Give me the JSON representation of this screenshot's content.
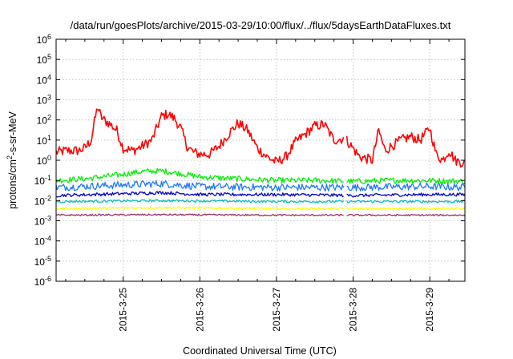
{
  "chart_data": {
    "type": "line",
    "title": "/data/run/goesPlots/archive/2015-03-29/10:00/flux/../flux/5daysEarthDataFluxes.txt",
    "xlabel": "Coordinated Universal Time (UTC)",
    "ylabel": {
      "prefix": "protons/cm",
      "sup": "2",
      "suffix": "-s-sr-MeV"
    },
    "yscale": "log",
    "ylim": [
      1e-06,
      1000000.0
    ],
    "xlim": [
      "2015-03-24 03:00",
      "2015-03-29 11:00"
    ],
    "grid": true,
    "y_ticks": [
      {
        "base": "10",
        "exp": "-6"
      },
      {
        "base": "10",
        "exp": "-5"
      },
      {
        "base": "10",
        "exp": "-4"
      },
      {
        "base": "10",
        "exp": "-3"
      },
      {
        "base": "10",
        "exp": "-2"
      },
      {
        "base": "10",
        "exp": "-1"
      },
      {
        "base": "10",
        "exp": "0"
      },
      {
        "base": "10",
        "exp": "1"
      },
      {
        "base": "10",
        "exp": "2"
      },
      {
        "base": "10",
        "exp": "3"
      },
      {
        "base": "10",
        "exp": "4"
      },
      {
        "base": "10",
        "exp": "5"
      },
      {
        "base": "10",
        "exp": "6"
      }
    ],
    "x_ticks": [
      "2015-3-25",
      "2015-3-26",
      "2015-3-27",
      "2015-3-28",
      "2015-3-29"
    ],
    "data_gap": [
      "2015-03-27 21:00",
      "2015-03-27 22:00"
    ],
    "series": [
      {
        "color": "#ff0000",
        "jitter": 0.25,
        "x": [
          "2015-03-24 03:00",
          "2015-03-24 06:00",
          "2015-03-24 10:00",
          "2015-03-24 12:00",
          "2015-03-24 14:00",
          "2015-03-24 15:00",
          "2015-03-24 16:00",
          "2015-03-24 17:00",
          "2015-03-24 18:00",
          "2015-03-24 20:00",
          "2015-03-24 22:00",
          "2015-03-25 00:00",
          "2015-03-25 03:00",
          "2015-03-25 06:00",
          "2015-03-25 09:00",
          "2015-03-25 12:00",
          "2015-03-25 14:00",
          "2015-03-25 16:00",
          "2015-03-25 18:00",
          "2015-03-25 20:00",
          "2015-03-25 22:00",
          "2015-03-26 00:00",
          "2015-03-26 03:00",
          "2015-03-26 06:00",
          "2015-03-26 09:00",
          "2015-03-26 12:00",
          "2015-03-26 15:00",
          "2015-03-26 18:00",
          "2015-03-26 21:00",
          "2015-03-27 00:00",
          "2015-03-27 03:00",
          "2015-03-27 06:00",
          "2015-03-27 09:00",
          "2015-03-27 12:00",
          "2015-03-27 15:00",
          "2015-03-27 18:00",
          "2015-03-27 21:00",
          "2015-03-27 22:00",
          "2015-03-28 02:00",
          "2015-03-28 06:00",
          "2015-03-28 08:00",
          "2015-03-28 10:00",
          "2015-03-28 12:00",
          "2015-03-28 15:00",
          "2015-03-28 18:00",
          "2015-03-28 21:00",
          "2015-03-29 00:00",
          "2015-03-29 02:00",
          "2015-03-29 04:00",
          "2015-03-29 06:00",
          "2015-03-29 08:00",
          "2015-03-29 11:00"
        ],
        "y": [
          2.5,
          3,
          3,
          4,
          10,
          80,
          450,
          150,
          100,
          60,
          30,
          4,
          3,
          5,
          10,
          150,
          200,
          120,
          40,
          5,
          2.5,
          2,
          2,
          5,
          20,
          70,
          30,
          4,
          1.5,
          0.8,
          1.5,
          8,
          20,
          50,
          60,
          10,
          12,
          10,
          1.5,
          1,
          30,
          3,
          5,
          10,
          15,
          10,
          40,
          2,
          1,
          3,
          1,
          0.7
        ]
      },
      {
        "color": "#00ee00",
        "jitter": 0.14,
        "x": [
          "2015-03-24 03:00",
          "2015-03-24 12:00",
          "2015-03-25 00:00",
          "2015-03-25 06:00",
          "2015-03-25 12:00",
          "2015-03-25 18:00",
          "2015-03-26 00:00",
          "2015-03-26 12:00",
          "2015-03-27 00:00",
          "2015-03-27 12:00",
          "2015-03-28 00:00",
          "2015-03-28 12:00",
          "2015-03-29 00:00",
          "2015-03-29 11:00"
        ],
        "y": [
          0.1,
          0.12,
          0.2,
          0.28,
          0.3,
          0.22,
          0.15,
          0.12,
          0.1,
          0.1,
          0.09,
          0.1,
          0.1,
          0.09
        ]
      },
      {
        "color": "#1e78ff",
        "jitter": 0.18,
        "x": [
          "2015-03-24 03:00",
          "2015-03-25 00:00",
          "2015-03-25 12:00",
          "2015-03-26 00:00",
          "2015-03-27 00:00",
          "2015-03-28 00:00",
          "2015-03-29 00:00",
          "2015-03-29 11:00"
        ],
        "y": [
          0.045,
          0.06,
          0.07,
          0.05,
          0.045,
          0.045,
          0.05,
          0.045
        ]
      },
      {
        "color": "#0000cc",
        "jitter": 0.08,
        "x": [
          "2015-03-24 03:00",
          "2015-03-25 00:00",
          "2015-03-25 12:00",
          "2015-03-26 00:00",
          "2015-03-27 00:00",
          "2015-03-28 00:00",
          "2015-03-29 00:00",
          "2015-03-29 11:00"
        ],
        "y": [
          0.018,
          0.022,
          0.025,
          0.02,
          0.02,
          0.018,
          0.02,
          0.02
        ]
      },
      {
        "color": "#00c0c0",
        "jitter": 0.06,
        "x": [
          "2015-03-24 03:00",
          "2015-03-25 12:00",
          "2015-03-27 00:00",
          "2015-03-28 00:00",
          "2015-03-29 11:00"
        ],
        "y": [
          0.009,
          0.01,
          0.009,
          0.009,
          0.009
        ]
      },
      {
        "color": "#ffff00",
        "jitter": 0.05,
        "x": [
          "2015-03-24 03:00",
          "2015-03-25 12:00",
          "2015-03-27 00:00",
          "2015-03-28 00:00",
          "2015-03-29 11:00"
        ],
        "y": [
          0.004,
          0.0045,
          0.004,
          0.004,
          0.004
        ]
      },
      {
        "color": "#993366",
        "jitter": 0.04,
        "x": [
          "2015-03-24 03:00",
          "2015-03-25 12:00",
          "2015-03-27 00:00",
          "2015-03-28 00:00",
          "2015-03-29 11:00"
        ],
        "y": [
          0.0019,
          0.002,
          0.0019,
          0.0019,
          0.0019
        ]
      }
    ]
  }
}
